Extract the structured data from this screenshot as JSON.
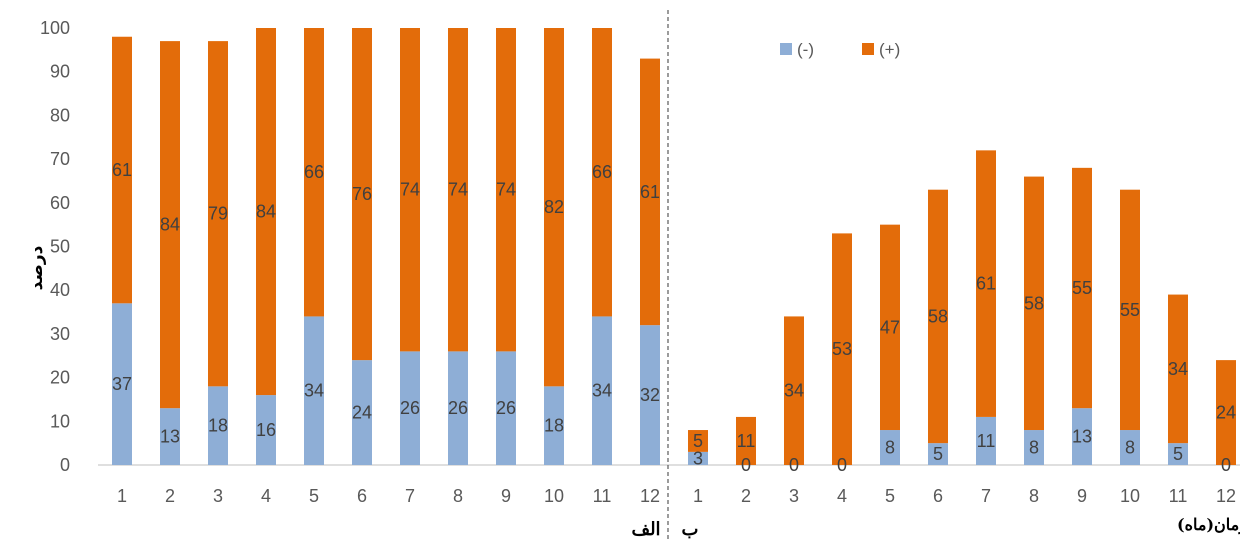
{
  "chart_data": {
    "type": "bar",
    "stacked": true,
    "ylabel": "درصد",
    "xlabel": "زمان(ماه)",
    "ylim": [
      0,
      100
    ],
    "yticks": [
      0,
      10,
      20,
      30,
      40,
      50,
      60,
      70,
      80,
      90,
      100
    ],
    "grid": false,
    "legend_position": "top-right",
    "colors": {
      "neg": "#8eaed6",
      "pos": "#e36c0a",
      "axis": "#bfbfbf",
      "divider": "#595959"
    },
    "legend": [
      {
        "key": "neg",
        "label": "(-)"
      },
      {
        "key": "pos",
        "label": "(+)"
      }
    ],
    "panels": [
      {
        "label": "الف",
        "categories": [
          "1",
          "2",
          "3",
          "4",
          "5",
          "6",
          "7",
          "8",
          "9",
          "10",
          "11",
          "12"
        ],
        "series": [
          {
            "key": "neg",
            "values": [
              37,
              13,
              18,
              16,
              34,
              24,
              26,
              26,
              26,
              18,
              34,
              32
            ]
          },
          {
            "key": "pos",
            "values": [
              61,
              84,
              79,
              84,
              66,
              76,
              74,
              74,
              74,
              82,
              66,
              61
            ]
          }
        ]
      },
      {
        "label": "ب",
        "categories": [
          "1",
          "2",
          "3",
          "4",
          "5",
          "6",
          "7",
          "8",
          "9",
          "10",
          "11",
          "12"
        ],
        "series": [
          {
            "key": "neg",
            "values": [
              3,
              0,
              0,
              0,
              8,
              5,
              11,
              8,
              13,
              8,
              5,
              0
            ]
          },
          {
            "key": "pos",
            "values": [
              5,
              11,
              34,
              53,
              47,
              58,
              61,
              58,
              55,
              55,
              34,
              24
            ]
          }
        ]
      }
    ]
  }
}
